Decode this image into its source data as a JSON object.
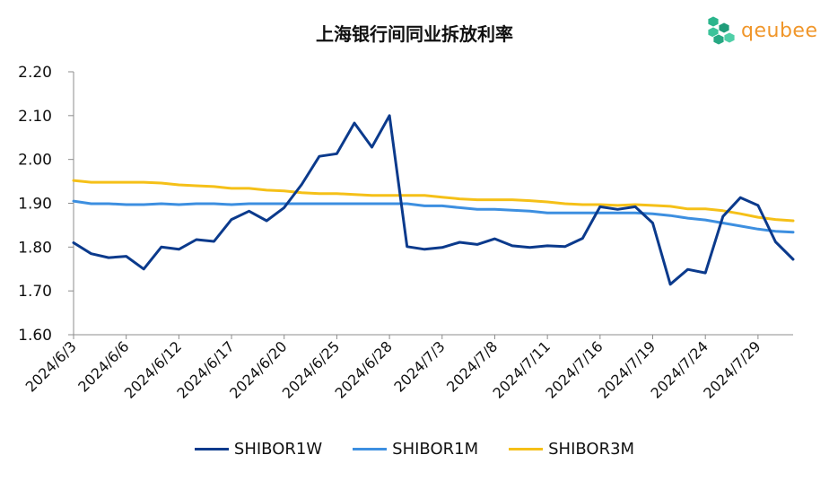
{
  "title": "上海银行间同业拆放利率",
  "logo": {
    "text": "qeubee",
    "icon": "cube-logo-icon",
    "icon_color": "#2bb58c",
    "text_color": "#f0962a"
  },
  "legend": [
    {
      "label": "SHIBOR1W",
      "color": "#0b3a8c"
    },
    {
      "label": "SHIBOR1M",
      "color": "#3d8fe0"
    },
    {
      "label": "SHIBOR3M",
      "color": "#f5c018"
    }
  ],
  "chart_data": {
    "type": "line",
    "title": "上海银行间同业拆放利率",
    "xlabel": "",
    "ylabel": "",
    "ylim": [
      1.6,
      2.2
    ],
    "yticks": [
      "1.60",
      "1.70",
      "1.80",
      "1.90",
      "2.00",
      "2.10",
      "2.20"
    ],
    "grid": false,
    "legend_position": "bottom",
    "x": [
      "2024/6/3",
      "2024/6/4",
      "2024/6/5",
      "2024/6/6",
      "2024/6/7",
      "2024/6/11",
      "2024/6/12",
      "2024/6/13",
      "2024/6/14",
      "2024/6/17",
      "2024/6/18",
      "2024/6/19",
      "2024/6/20",
      "2024/6/21",
      "2024/6/24",
      "2024/6/25",
      "2024/6/26",
      "2024/6/27",
      "2024/6/28",
      "2024/7/1",
      "2024/7/2",
      "2024/7/3",
      "2024/7/4",
      "2024/7/5",
      "2024/7/8",
      "2024/7/9",
      "2024/7/10",
      "2024/7/11",
      "2024/7/12",
      "2024/7/15",
      "2024/7/16",
      "2024/7/17",
      "2024/7/18",
      "2024/7/19",
      "2024/7/22",
      "2024/7/23",
      "2024/7/24",
      "2024/7/25",
      "2024/7/26",
      "2024/7/29",
      "2024/7/30",
      "2024/7/31"
    ],
    "xtick_labels": [
      "2024/6/3",
      "2024/6/6",
      "2024/6/12",
      "2024/6/17",
      "2024/6/20",
      "2024/6/25",
      "2024/6/28",
      "2024/7/3",
      "2024/7/8",
      "2024/7/11",
      "2024/7/16",
      "2024/7/19",
      "2024/7/24",
      "2024/7/29"
    ],
    "series": [
      {
        "name": "SHIBOR1W",
        "color": "#0b3a8c",
        "values": [
          1.81,
          1.785,
          1.776,
          1.779,
          1.75,
          1.8,
          1.795,
          1.817,
          1.813,
          1.863,
          1.882,
          1.86,
          1.89,
          1.943,
          2.007,
          2.013,
          2.083,
          2.028,
          2.1,
          1.801,
          1.795,
          1.799,
          1.811,
          1.806,
          1.819,
          1.803,
          1.799,
          1.803,
          1.801,
          1.82,
          1.892,
          1.886,
          1.892,
          1.855,
          1.715,
          1.749,
          1.741,
          1.87,
          1.913,
          1.895,
          1.812,
          1.772
        ]
      },
      {
        "name": "SHIBOR1M",
        "color": "#3d8fe0",
        "values": [
          1.905,
          1.899,
          1.899,
          1.897,
          1.897,
          1.899,
          1.897,
          1.899,
          1.899,
          1.897,
          1.899,
          1.899,
          1.899,
          1.899,
          1.899,
          1.899,
          1.899,
          1.899,
          1.899,
          1.899,
          1.894,
          1.894,
          1.89,
          1.886,
          1.886,
          1.884,
          1.882,
          1.878,
          1.878,
          1.878,
          1.878,
          1.878,
          1.878,
          1.876,
          1.872,
          1.866,
          1.862,
          1.855,
          1.848,
          1.841,
          1.836,
          1.834
        ]
      },
      {
        "name": "SHIBOR3M",
        "color": "#f5c018",
        "values": [
          1.952,
          1.948,
          1.948,
          1.948,
          1.948,
          1.946,
          1.942,
          1.94,
          1.938,
          1.934,
          1.934,
          1.93,
          1.928,
          1.924,
          1.922,
          1.922,
          1.92,
          1.918,
          1.918,
          1.918,
          1.918,
          1.914,
          1.91,
          1.908,
          1.908,
          1.908,
          1.906,
          1.903,
          1.899,
          1.897,
          1.897,
          1.895,
          1.897,
          1.895,
          1.893,
          1.887,
          1.887,
          1.883,
          1.876,
          1.868,
          1.863,
          1.86
        ]
      }
    ]
  }
}
